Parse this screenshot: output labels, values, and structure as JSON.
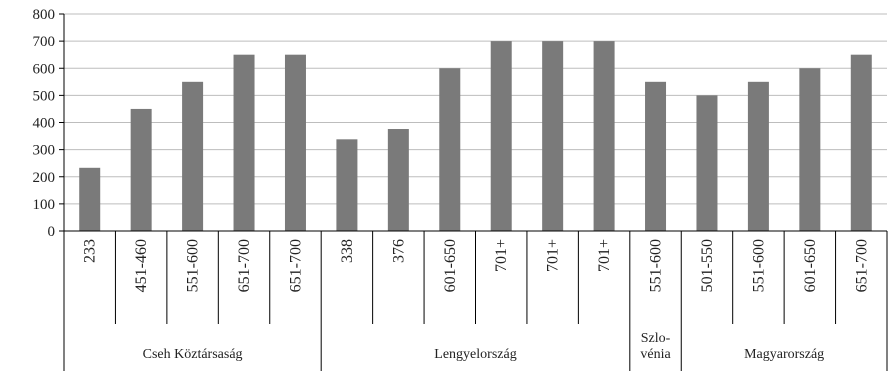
{
  "chart_data": {
    "type": "bar",
    "categories": [
      "233",
      "451-460",
      "551-600",
      "651-700",
      "651-700",
      "338",
      "376",
      "601-650",
      "701+",
      "701+",
      "701+",
      "551-600",
      "501-550",
      "551-600",
      "601-650",
      "651-700"
    ],
    "values": [
      233,
      450,
      550,
      650,
      650,
      338,
      376,
      600,
      700,
      700,
      700,
      550,
      500,
      550,
      600,
      650
    ],
    "groups": [
      {
        "label": "Cseh Köztársaság",
        "count": 5
      },
      {
        "label": "Lengyelország",
        "count": 6
      },
      {
        "label_lines": [
          "Szlo-",
          "vénia"
        ],
        "count": 1
      },
      {
        "label": "Magyarország",
        "count": 4
      }
    ],
    "yticks": [
      "0",
      "100",
      "200",
      "300",
      "400",
      "500",
      "600",
      "700",
      "800"
    ],
    "ylim": [
      0,
      800
    ],
    "grid": true,
    "colors": {
      "bar": "#7a7a7a",
      "grid": "#bdbdbd",
      "axis": "#000000"
    }
  }
}
